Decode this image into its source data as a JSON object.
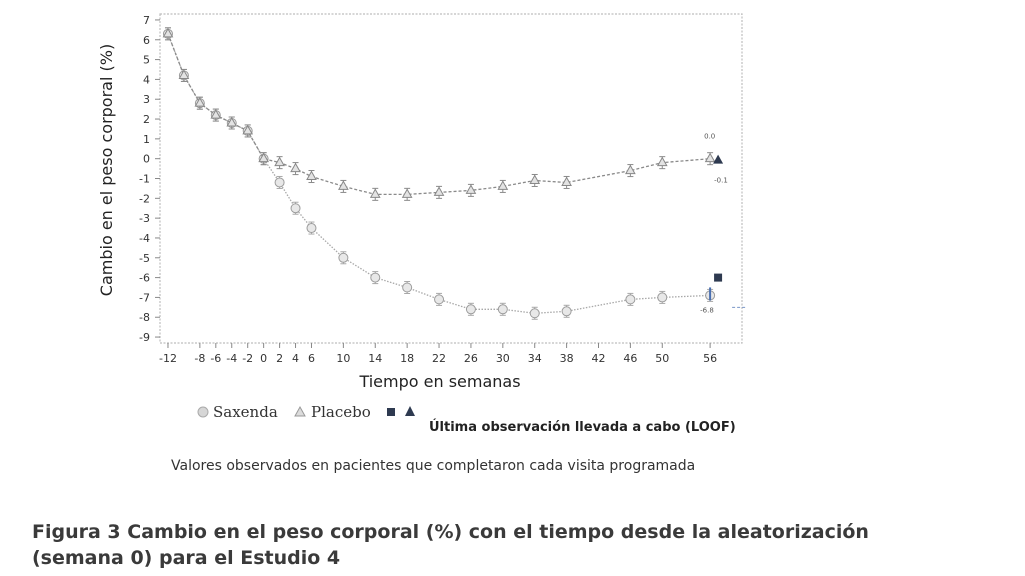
{
  "chart_data": {
    "type": "line",
    "ylabel": "Cambio en el peso corporal (%)",
    "xlabel": "Tiempo en semanas",
    "xlim": [
      -13,
      60
    ],
    "ylim": [
      -9.3,
      7.3
    ],
    "x_ticks": [
      -12,
      -8,
      -6,
      -4,
      -2,
      0,
      2,
      4,
      6,
      10,
      14,
      18,
      22,
      26,
      30,
      34,
      38,
      42,
      46,
      50,
      56
    ],
    "y_ticks": [
      7,
      6,
      5,
      4,
      3,
      2,
      1,
      0,
      -1,
      -2,
      -3,
      -4,
      -5,
      -6,
      -7,
      -8,
      -9
    ],
    "grid": false,
    "series": [
      {
        "name": "Saxenda",
        "x": [
          -12,
          -10,
          -8,
          -6,
          -4,
          -2,
          0,
          2,
          4,
          6,
          10,
          14,
          18,
          22,
          26,
          30,
          34,
          38,
          46,
          50,
          56
        ],
        "y": [
          6.3,
          4.2,
          2.8,
          2.2,
          1.8,
          1.4,
          0.0,
          -1.2,
          -2.5,
          -3.5,
          -5.0,
          -6.0,
          -6.5,
          -7.1,
          -7.6,
          -7.6,
          -7.8,
          -7.7,
          -7.1,
          -7.0,
          -6.9
        ]
      },
      {
        "name": "Placebo",
        "x": [
          -12,
          -10,
          -8,
          -6,
          -4,
          -2,
          0,
          2,
          4,
          6,
          10,
          14,
          18,
          22,
          26,
          30,
          34,
          38,
          46,
          50,
          56
        ],
        "y": [
          6.3,
          4.2,
          2.8,
          2.2,
          1.8,
          1.4,
          0.0,
          -0.2,
          -0.5,
          -0.9,
          -1.4,
          -1.8,
          -1.8,
          -1.7,
          -1.6,
          -1.4,
          -1.1,
          -1.2,
          -0.6,
          -0.2,
          0.0
        ]
      }
    ],
    "loof_points": [
      {
        "series": "Saxenda",
        "x": 57,
        "y": -6.0
      },
      {
        "series": "Placebo",
        "x": 57,
        "y": -0.1
      }
    ],
    "annotations": {
      "placebo_top": "0.0",
      "placebo_bottom": "-0.1",
      "saxenda_bottom": "-6.8"
    },
    "legend": {
      "saxenda": "Saxenda",
      "placebo": "Placebo",
      "loof": "Última observación llevada a cabo (LOOF)"
    },
    "colors": {
      "saxenda": "#a8a8a8",
      "placebo": "#8a8a8a",
      "loof": "#2e3a50",
      "axis": "#bdbdbd"
    }
  },
  "caption": "Valores observados en pacientes que completaron cada visita programada",
  "figure_title_line1": "Figura 3 Cambio en el peso corporal (%) con el tiempo desde la aleatorización",
  "figure_title_line2": "(semana 0) para el Estudio 4"
}
